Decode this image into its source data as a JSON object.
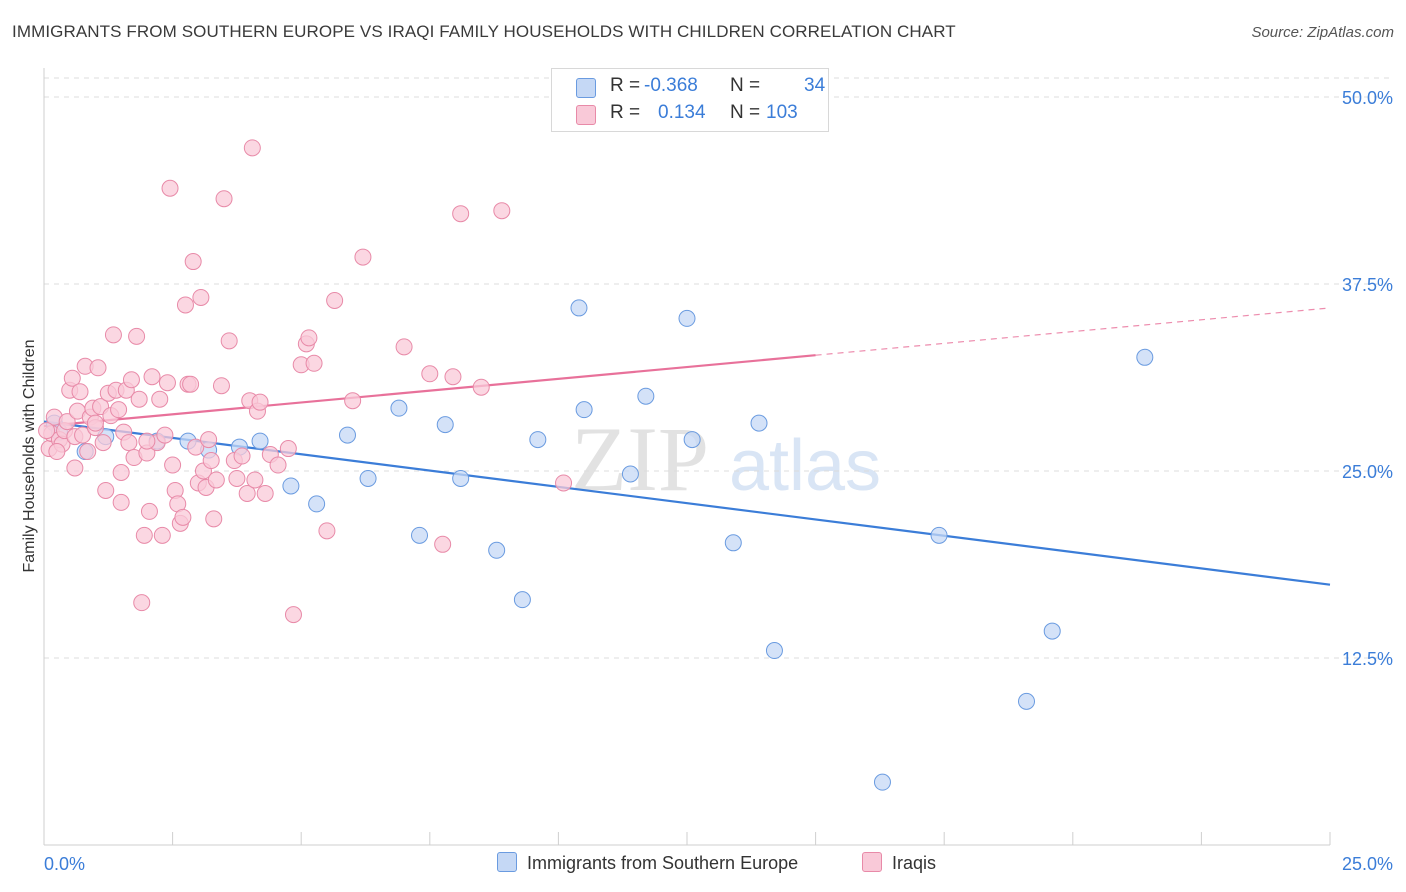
{
  "title": "IMMIGRANTS FROM SOUTHERN EUROPE VS IRAQI FAMILY HOUSEHOLDS WITH CHILDREN CORRELATION CHART",
  "source": "Source: ZipAtlas.com",
  "watermark": {
    "zip": "ZIP",
    "atlas": "atlas"
  },
  "legend": {
    "rows": [
      {
        "r_label": "R =",
        "r_value": "-0.368",
        "n_label": "N =",
        "n_value": "34"
      },
      {
        "r_label": "R =",
        "r_value": "0.134",
        "n_label": "N =",
        "n_value": "103"
      }
    ]
  },
  "colors": {
    "blue_fill": "#c5d8f5",
    "blue_stroke": "#6a9be0",
    "blue_line": "#3b7dd8",
    "pink_fill": "#f9c9d8",
    "pink_stroke": "#e88aa8",
    "pink_line": "#e8719a",
    "tick_label": "#3b7dd8",
    "grid": "#dcdcdc"
  },
  "chart_data": {
    "type": "scatter",
    "title": "IMMIGRANTS FROM SOUTHERN EUROPE VS IRAQI FAMILY HOUSEHOLDS WITH CHILDREN CORRELATION CHART",
    "xlabel": "",
    "ylabel": "Family Households with Children",
    "xlim": [
      0,
      25
    ],
    "ylim": [
      0,
      50
    ],
    "x_tick_labels": [
      "0.0%",
      "25.0%"
    ],
    "y_ticks": [
      12.5,
      25.0,
      37.5,
      50.0
    ],
    "y_tick_labels": [
      "12.5%",
      "25.0%",
      "37.5%",
      "50.0%"
    ],
    "grid": true,
    "legend_position": "bottom",
    "series": [
      {
        "name": "Immigrants from Southern Europe",
        "color": "#6a9be0",
        "trend": {
          "x": [
            0,
            25
          ],
          "y": [
            28.3,
            17.4
          ],
          "dashed_from": null
        },
        "points": [
          [
            0.2,
            28.2
          ],
          [
            0.3,
            27.6
          ],
          [
            0.8,
            26.3
          ],
          [
            1.2,
            27.3
          ],
          [
            2.2,
            27.0
          ],
          [
            2.8,
            27.0
          ],
          [
            3.2,
            26.4
          ],
          [
            3.8,
            26.6
          ],
          [
            4.2,
            27.0
          ],
          [
            4.8,
            24.0
          ],
          [
            5.3,
            22.8
          ],
          [
            5.9,
            27.4
          ],
          [
            6.3,
            24.5
          ],
          [
            6.9,
            29.2
          ],
          [
            7.3,
            20.7
          ],
          [
            7.8,
            28.1
          ],
          [
            8.1,
            24.5
          ],
          [
            8.8,
            19.7
          ],
          [
            9.3,
            16.4
          ],
          [
            9.6,
            27.1
          ],
          [
            10.4,
            35.9
          ],
          [
            10.5,
            29.1
          ],
          [
            11.4,
            24.8
          ],
          [
            11.7,
            30.0
          ],
          [
            12.5,
            35.2
          ],
          [
            12.6,
            27.1
          ],
          [
            13.4,
            20.2
          ],
          [
            13.9,
            28.2
          ],
          [
            14.2,
            13.0
          ],
          [
            16.3,
            4.2
          ],
          [
            17.4,
            20.7
          ],
          [
            19.1,
            9.6
          ],
          [
            19.6,
            14.3
          ],
          [
            21.4,
            32.6
          ]
        ]
      },
      {
        "name": "Iraqis",
        "color": "#e88aa8",
        "trend": {
          "x": [
            0,
            25
          ],
          "y": [
            28.0,
            35.9
          ],
          "dashed_from": 15.0
        },
        "points": [
          [
            0.1,
            26.5
          ],
          [
            0.15,
            27.5
          ],
          [
            0.2,
            28.6
          ],
          [
            0.3,
            27.1
          ],
          [
            0.35,
            26.8
          ],
          [
            0.4,
            27.7
          ],
          [
            0.45,
            28.3
          ],
          [
            0.5,
            30.4
          ],
          [
            0.55,
            31.2
          ],
          [
            0.6,
            27.3
          ],
          [
            0.65,
            29.0
          ],
          [
            0.7,
            30.3
          ],
          [
            0.75,
            27.4
          ],
          [
            0.8,
            32.0
          ],
          [
            0.85,
            26.3
          ],
          [
            0.9,
            28.6
          ],
          [
            0.95,
            29.2
          ],
          [
            1.0,
            27.9
          ],
          [
            1.05,
            31.9
          ],
          [
            1.1,
            29.3
          ],
          [
            1.15,
            26.9
          ],
          [
            1.2,
            23.7
          ],
          [
            1.25,
            30.2
          ],
          [
            1.3,
            28.7
          ],
          [
            1.35,
            34.1
          ],
          [
            1.4,
            30.4
          ],
          [
            1.45,
            29.1
          ],
          [
            1.5,
            22.9
          ],
          [
            1.55,
            27.6
          ],
          [
            1.6,
            30.4
          ],
          [
            1.65,
            26.9
          ],
          [
            1.7,
            31.1
          ],
          [
            1.75,
            25.9
          ],
          [
            1.8,
            34.0
          ],
          [
            1.85,
            29.8
          ],
          [
            1.9,
            16.2
          ],
          [
            1.95,
            20.7
          ],
          [
            2.0,
            26.2
          ],
          [
            2.05,
            22.3
          ],
          [
            2.1,
            31.3
          ],
          [
            2.2,
            26.9
          ],
          [
            2.25,
            29.8
          ],
          [
            2.3,
            20.7
          ],
          [
            2.35,
            27.4
          ],
          [
            2.4,
            30.9
          ],
          [
            2.45,
            43.9
          ],
          [
            2.5,
            25.4
          ],
          [
            2.55,
            23.7
          ],
          [
            2.6,
            22.8
          ],
          [
            2.65,
            21.5
          ],
          [
            2.7,
            21.9
          ],
          [
            2.75,
            36.1
          ],
          [
            2.8,
            30.8
          ],
          [
            2.85,
            30.8
          ],
          [
            2.9,
            39.0
          ],
          [
            2.95,
            26.6
          ],
          [
            3.0,
            24.2
          ],
          [
            3.05,
            36.6
          ],
          [
            3.1,
            25.0
          ],
          [
            3.15,
            23.9
          ],
          [
            3.2,
            27.1
          ],
          [
            3.25,
            25.7
          ],
          [
            3.3,
            21.8
          ],
          [
            3.35,
            24.4
          ],
          [
            3.45,
            30.7
          ],
          [
            3.5,
            43.2
          ],
          [
            3.6,
            33.7
          ],
          [
            3.7,
            25.7
          ],
          [
            3.75,
            24.5
          ],
          [
            3.85,
            26.0
          ],
          [
            3.95,
            23.5
          ],
          [
            4.0,
            29.7
          ],
          [
            4.05,
            46.6
          ],
          [
            4.1,
            24.4
          ],
          [
            4.15,
            29.0
          ],
          [
            4.2,
            29.6
          ],
          [
            4.3,
            23.5
          ],
          [
            4.4,
            26.1
          ],
          [
            4.55,
            25.4
          ],
          [
            4.75,
            26.5
          ],
          [
            4.85,
            15.4
          ],
          [
            5.0,
            32.1
          ],
          [
            5.1,
            33.5
          ],
          [
            5.15,
            33.9
          ],
          [
            5.25,
            32.2
          ],
          [
            5.5,
            21.0
          ],
          [
            5.65,
            36.4
          ],
          [
            6.0,
            29.7
          ],
          [
            6.2,
            39.3
          ],
          [
            7.0,
            33.3
          ],
          [
            7.5,
            31.5
          ],
          [
            7.75,
            20.1
          ],
          [
            7.95,
            31.3
          ],
          [
            8.1,
            42.2
          ],
          [
            8.5,
            30.6
          ],
          [
            8.9,
            42.4
          ],
          [
            10.1,
            24.2
          ],
          [
            0.25,
            26.3
          ],
          [
            0.6,
            25.2
          ],
          [
            1.0,
            28.2
          ],
          [
            1.5,
            24.9
          ],
          [
            2.0,
            27.0
          ],
          [
            0.05,
            27.7
          ]
        ]
      }
    ]
  },
  "bottom_legend": [
    "Immigrants from Southern Europe",
    "Iraqis"
  ]
}
